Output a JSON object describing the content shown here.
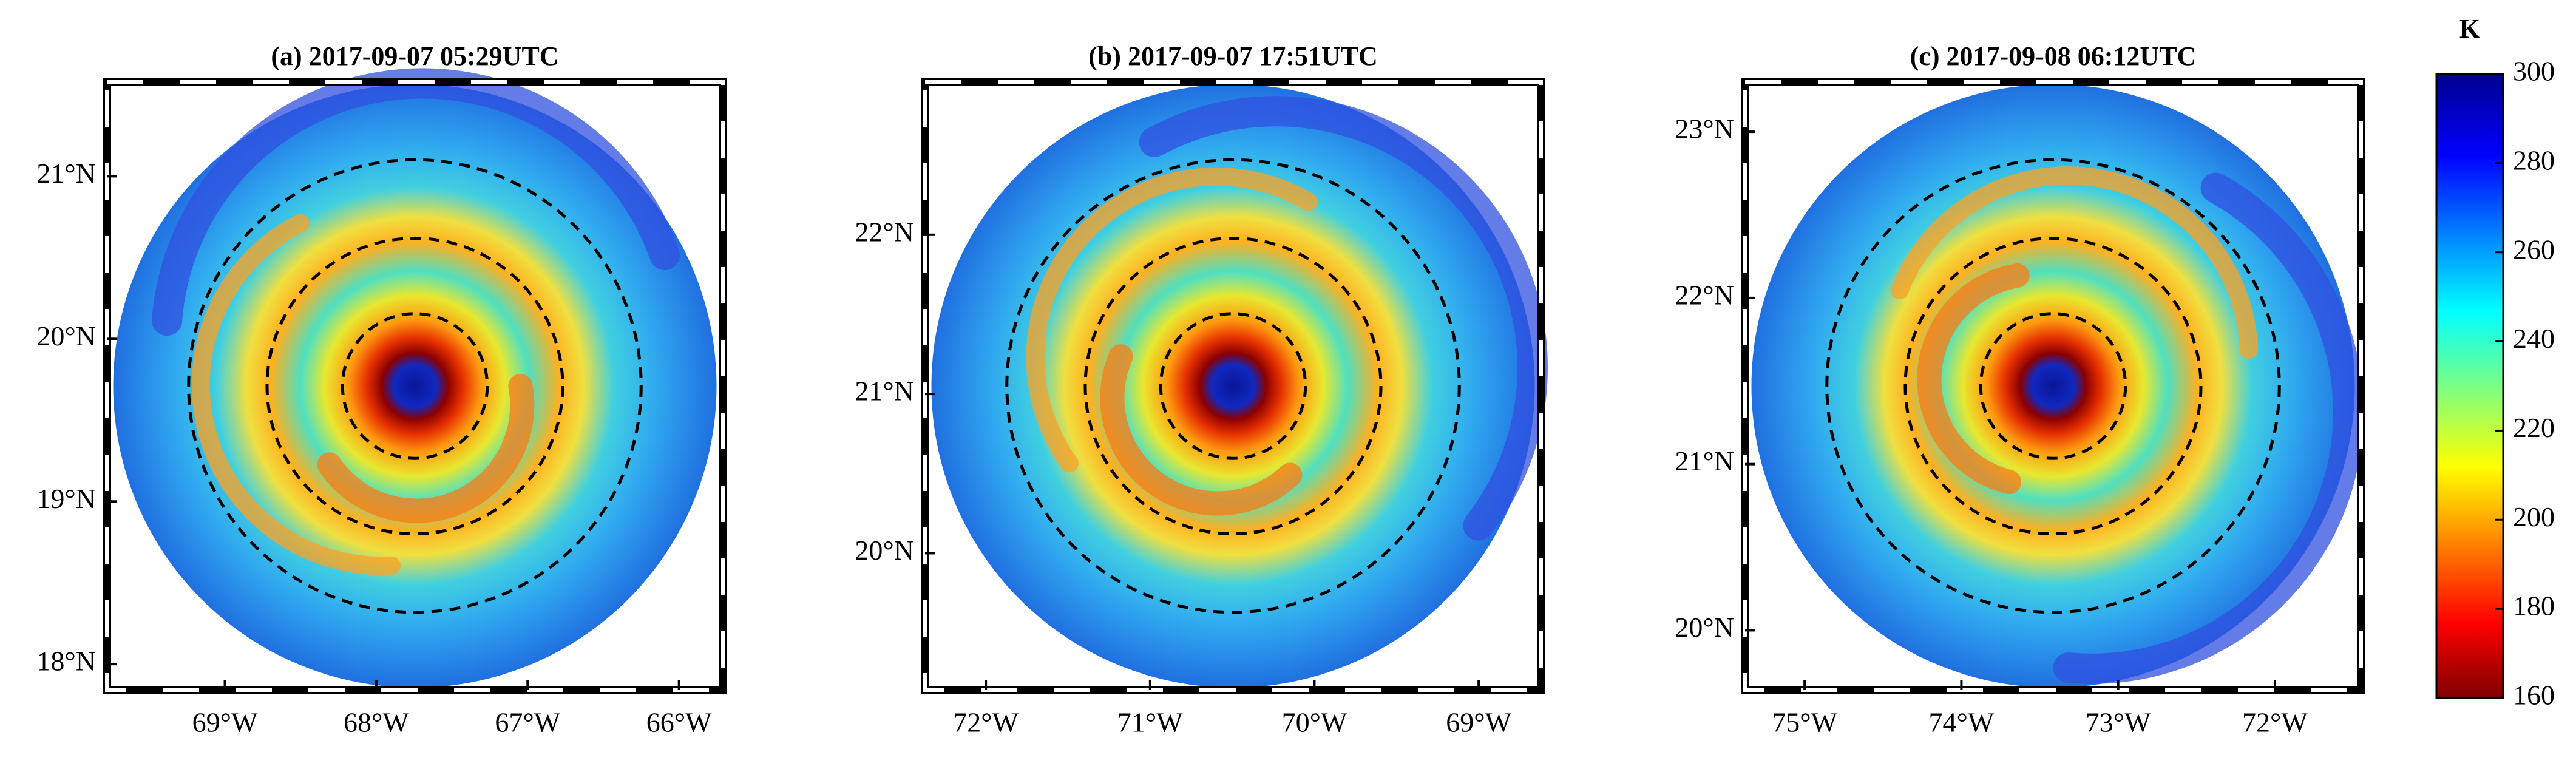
{
  "chart_data": [
    {
      "type": "map",
      "title": "(a) 2017-09-07 05:29UTC",
      "xlim": [
        -69.78,
        -65.71
      ],
      "ylim": [
        17.84,
        21.58
      ],
      "xticks": [
        {
          "value": -69,
          "label": "69°W"
        },
        {
          "value": -68,
          "label": "68°W"
        },
        {
          "value": -67,
          "label": "67°W"
        },
        {
          "value": -66,
          "label": "66°W"
        }
      ],
      "yticks": [
        {
          "value": 18,
          "label": "18°N"
        },
        {
          "value": 19,
          "label": "19°N"
        },
        {
          "value": 20,
          "label": "20°N"
        },
        {
          "value": 21,
          "label": "21°N"
        }
      ]
    },
    {
      "type": "map",
      "title": "(b) 2017-09-07 17:51UTC",
      "xlim": [
        -72.37,
        -68.62
      ],
      "ylim": [
        19.14,
        22.96
      ],
      "xticks": [
        {
          "value": -72,
          "label": "72°W"
        },
        {
          "value": -71,
          "label": "71°W"
        },
        {
          "value": -70,
          "label": "70°W"
        },
        {
          "value": -69,
          "label": "69°W"
        }
      ],
      "yticks": [
        {
          "value": 20,
          "label": "20°N"
        },
        {
          "value": 21,
          "label": "21°N"
        },
        {
          "value": 22,
          "label": "22°N"
        }
      ]
    },
    {
      "type": "map",
      "title": "(c) 2017-09-08 06:12UTC",
      "xlim": [
        -75.38,
        -71.45
      ],
      "ylim": [
        19.64,
        23.3
      ],
      "xticks": [
        {
          "value": -75,
          "label": "75°W"
        },
        {
          "value": -74,
          "label": "74°W"
        },
        {
          "value": -73,
          "label": "73°W"
        },
        {
          "value": -72,
          "label": "72°W"
        }
      ],
      "yticks": [
        {
          "value": 20,
          "label": "20°N"
        },
        {
          "value": 21,
          "label": "21°N"
        },
        {
          "value": 22,
          "label": "22°N"
        },
        {
          "value": 23,
          "label": "23°N"
        }
      ]
    }
  ],
  "colorbar": {
    "label": "K",
    "lim": [
      160,
      300
    ],
    "ticks": [
      160,
      180,
      200,
      220,
      240,
      260,
      280,
      300
    ]
  }
}
